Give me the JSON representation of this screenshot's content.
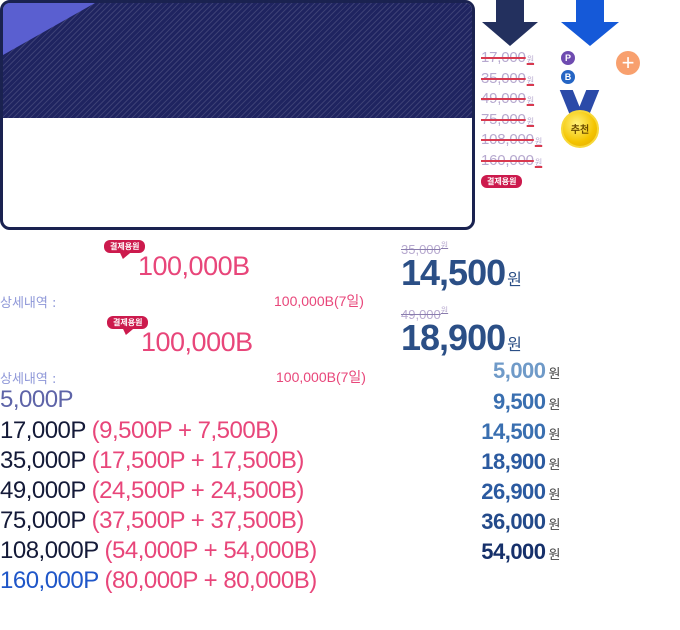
{
  "side_prices": [
    {
      "amount": "17,000",
      "unit": "원"
    },
    {
      "amount": "35,000",
      "unit": "원"
    },
    {
      "amount": "49,000",
      "unit": "원"
    },
    {
      "amount": "75,000",
      "unit": "원"
    },
    {
      "amount": "108,000",
      "unit": "원"
    },
    {
      "amount": "160,000",
      "unit": "원"
    }
  ],
  "badges": {
    "point": "P",
    "bonus": "B",
    "plus": "+"
  },
  "medal_label": "추천",
  "pill_label": "결제용원",
  "offers": [
    {
      "pill": "결제용원",
      "bonus_amount": "100,000B",
      "detail_label": "상세내역 :",
      "detail_value": "100,000B(7일)",
      "original_price": "35,000",
      "original_unit": "원",
      "sale_price": "14,500",
      "sale_unit": "원"
    },
    {
      "pill": "결제용원",
      "bonus_amount": "100,000B",
      "detail_label": "상세내역 :",
      "detail_value": "100,000B(7일)",
      "original_price": "49,000",
      "original_unit": "원",
      "sale_price": "18,900",
      "sale_unit": "원"
    }
  ],
  "points_list": [
    {
      "total": "5,000P",
      "breakdown": ""
    },
    {
      "total": "17,000P",
      "breakdown": "(9,500P + 7,500B)"
    },
    {
      "total": "35,000P",
      "breakdown": "(17,500P + 17,500B)"
    },
    {
      "total": "49,000P",
      "breakdown": "(24,500P + 24,500B)"
    },
    {
      "total": "75,000P",
      "breakdown": "(37,500P + 37,500B)"
    },
    {
      "total": "108,000P",
      "breakdown": "(54,000P + 54,000B)"
    },
    {
      "total": "160,000P",
      "breakdown": "(80,000P + 80,000B)"
    }
  ],
  "price_list": [
    {
      "price": "5,000",
      "unit": "원"
    },
    {
      "price": "9,500",
      "unit": "원"
    },
    {
      "price": "14,500",
      "unit": "원"
    },
    {
      "price": "18,900",
      "unit": "원"
    },
    {
      "price": "26,900",
      "unit": "원"
    },
    {
      "price": "36,000",
      "unit": "원"
    },
    {
      "price": "54,000",
      "unit": "원"
    }
  ],
  "colors": {
    "navy": "#1f2460",
    "accent_pink": "#e8467a",
    "pill_red": "#cc1a4d",
    "price_blue": "#2b4f86",
    "bright_blue": "#1559d8"
  }
}
